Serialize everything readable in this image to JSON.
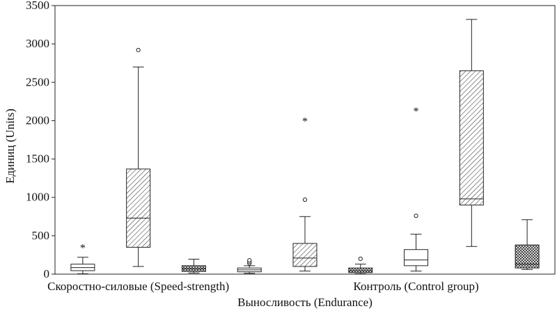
{
  "chart_data": {
    "type": "boxplot",
    "ylabel": "Единиц (Units)",
    "ylim": [
      0,
      3500
    ],
    "yticks": [
      0,
      500,
      1000,
      1500,
      2000,
      2500,
      3000,
      3500
    ],
    "group_labels": [
      {
        "text": "Скоростно-силовые (Speed-strength)",
        "center_box": 1
      },
      {
        "text": "Выносливость (Endurance)",
        "center_box": 4
      },
      {
        "text": "Контроль (Control group)",
        "center_box": 6
      }
    ],
    "boxes": [
      {
        "whisker_low": 5,
        "q1": 45,
        "median": 85,
        "q3": 130,
        "whisker_high": 220,
        "outliers": [],
        "extremes": [
          360
        ],
        "fill": "white"
      },
      {
        "whisker_low": 100,
        "q1": 350,
        "median": 730,
        "q3": 1370,
        "whisker_high": 2700,
        "outliers": [
          2920
        ],
        "extremes": [],
        "fill": "diag"
      },
      {
        "whisker_low": 15,
        "q1": 35,
        "median": 70,
        "q3": 110,
        "whisker_high": 195,
        "outliers": [],
        "extremes": [],
        "fill": "cross"
      },
      {
        "whisker_low": 10,
        "q1": 30,
        "median": 55,
        "q3": 80,
        "whisker_high": 110,
        "outliers": [
          140,
          160,
          180
        ],
        "extremes": [],
        "fill": "white"
      },
      {
        "whisker_low": 40,
        "q1": 100,
        "median": 210,
        "q3": 400,
        "whisker_high": 750,
        "outliers": [
          970
        ],
        "extremes": [
          2010
        ],
        "fill": "diag"
      },
      {
        "whisker_low": 5,
        "q1": 20,
        "median": 45,
        "q3": 80,
        "whisker_high": 130,
        "outliers": [
          200
        ],
        "extremes": [],
        "fill": "cross"
      },
      {
        "whisker_low": 40,
        "q1": 110,
        "median": 185,
        "q3": 320,
        "whisker_high": 520,
        "outliers": [
          760
        ],
        "extremes": [
          2140
        ],
        "fill": "white"
      },
      {
        "whisker_low": 360,
        "q1": 900,
        "median": 980,
        "q3": 2650,
        "whisker_high": 3320,
        "outliers": [],
        "extremes": [],
        "fill": "diag"
      },
      {
        "whisker_low": 60,
        "q1": 80,
        "median": 130,
        "q3": 380,
        "whisker_high": 710,
        "outliers": [],
        "extremes": [],
        "fill": "cross"
      }
    ]
  }
}
